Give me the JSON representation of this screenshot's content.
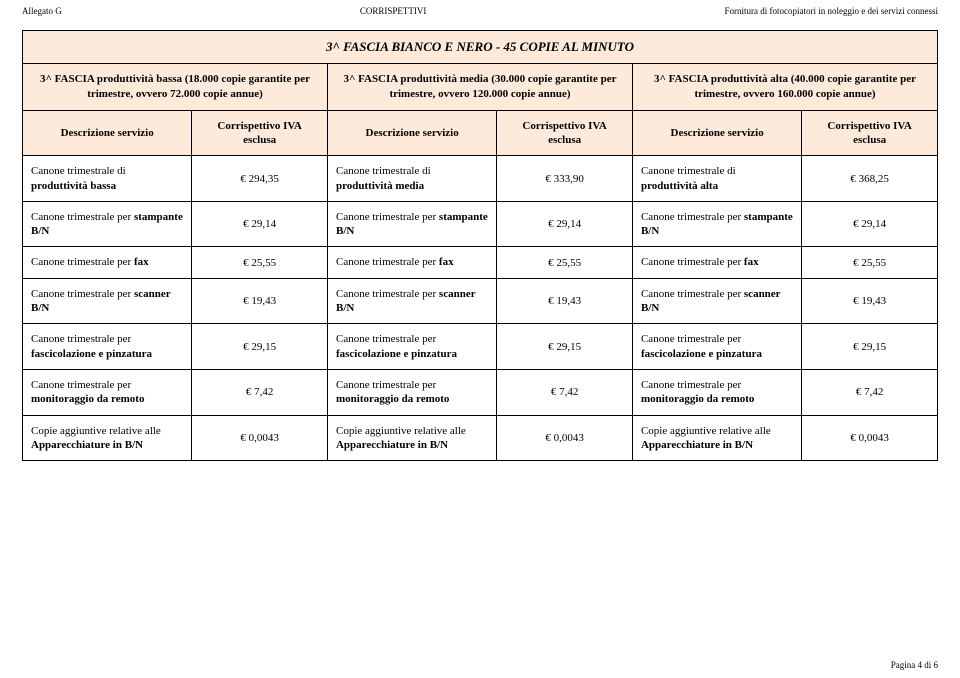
{
  "header": {
    "left": "Allegato G",
    "center": "CORRISPETTIVI",
    "right": "Fornitura di fotocopiatori in noleggio e dei servizi connessi"
  },
  "table": {
    "title": "3^ FASCIA BIANCO E NERO - 45 COPIE AL MINUTO",
    "tiers": [
      "3^ FASCIA produttività bassa (18.000 copie garantite per trimestre, ovvero 72.000 copie annue)",
      "3^ FASCIA produttività media (30.000 copie garantite per trimestre, ovvero 120.000 copie annue)",
      "3^ FASCIA produttività alta (40.000 copie garantite per trimestre, ovvero 160.000 copie annue)"
    ],
    "subheaders": {
      "desc": "Descrizione servizio",
      "val": "Corrispettivo IVA esclusa"
    },
    "rows": [
      {
        "c0d": "Canone trimestrale di <b>produttività bassa</b>",
        "c0v": "€ 294,35",
        "c1d": "Canone trimestrale di <b>produttività media</b>",
        "c1v": "€ 333,90",
        "c2d": "Canone trimestrale di <b>produttività alta</b>",
        "c2v": "€ 368,25"
      },
      {
        "c0d": "Canone trimestrale per <b>stampante B/N</b>",
        "c0v": "€ 29,14",
        "c1d": "Canone trimestrale per <b>stampante B/N</b>",
        "c1v": "€ 29,14",
        "c2d": "Canone trimestrale per <b>stampante B/N</b>",
        "c2v": "€ 29,14"
      },
      {
        "c0d": "Canone trimestrale per <b>fax</b>",
        "c0v": "€ 25,55",
        "c1d": "Canone trimestrale per <b>fax</b>",
        "c1v": "€ 25,55",
        "c2d": "Canone trimestrale per <b>fax</b>",
        "c2v": "€ 25,55"
      },
      {
        "c0d": "Canone trimestrale per <b>scanner B/N</b>",
        "c0v": "€ 19,43",
        "c1d": "Canone trimestrale per <b>scanner B/N</b>",
        "c1v": "€ 19,43",
        "c2d": "Canone trimestrale per <b>scanner B/N</b>",
        "c2v": "€ 19,43"
      },
      {
        "c0d": "Canone trimestrale per <b>fascicolazione e pinzatura</b>",
        "c0v": "€ 29,15",
        "c1d": "Canone trimestrale per <b>fascicolazione e pinzatura</b>",
        "c1v": "€ 29,15",
        "c2d": "Canone trimestrale per <b>fascicolazione e pinzatura</b>",
        "c2v": "€ 29,15"
      },
      {
        "c0d": "Canone trimestrale per <b>monitoraggio da remoto</b>",
        "c0v": "€ 7,42",
        "c1d": "Canone trimestrale per <b>monitoraggio da remoto</b>",
        "c1v": "€ 7,42",
        "c2d": "Canone trimestrale per <b>monitoraggio da remoto</b>",
        "c2v": "€ 7,42"
      },
      {
        "c0d": "Copie aggiuntive relative alle <b>Apparecchiature in B/N</b>",
        "c0v": "€ 0,0043",
        "c1d": "Copie aggiuntive relative alle <b>Apparecchiature in B/N</b>",
        "c1v": "€ 0,0043",
        "c2d": "Copie aggiuntive relative alle <b>Apparecchiature in B/N</b>",
        "c2v": "€ 0,0043"
      }
    ]
  },
  "footer": "Pagina 4 di 6",
  "style": {
    "header_bg": "#fdeada",
    "border_color": "#000000",
    "font_body": 11,
    "font_header_small": 9
  }
}
